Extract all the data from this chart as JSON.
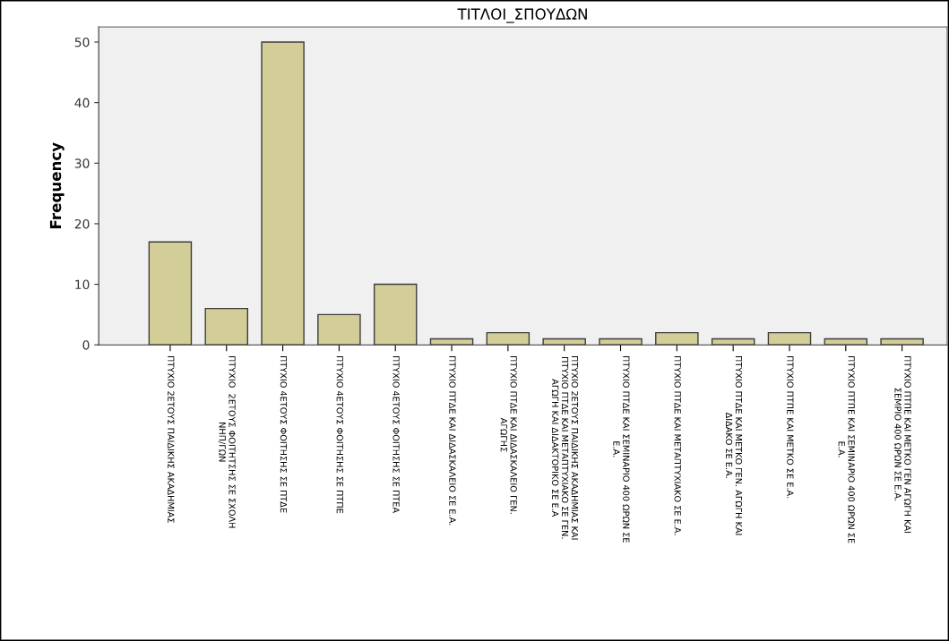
{
  "chart_data": {
    "type": "bar",
    "title": "ΤΙΤΛΟΙ_ΣΠΟΥΔΩΝ",
    "ylabel": "Frequency",
    "categories": [
      "ΠΤΥΧΙΟ 2ΕΤΟΥΣ ΠΑΙΔΙΚΗΣ ΑΚΑΔΗΜΙΑΣ",
      "ΠΤΥΧΙΟ  2ΕΤΟΥΣ ΦΟΙΤΗΤΣΗΣ ΣΕ ΣΧΟΛΗ\nΝΗΠ/ΓΩΝ",
      "ΠΤΥΧΙΟ 4ΕΤΟΥΣ ΦΟΙΤΗΣΗΣ ΣΕ ΠΤΔΕ",
      "ΠΤΥΧΙΟ 4ΕΤΟΥΣ ΦΟΙΤΗΣΗΣ ΣΕ ΠΤΠΕ",
      "ΠΤΥΧΙΟ 4ΕΤΟΥΣ ΦΟΙΤΗΣΗΣ ΣΕ ΠΤΕΑ",
      "ΠΤΥΧΙΟ ΠΤΔΕ ΚΑΙ ΔΙΔΑΣΚΑΛΕΙΟ ΣΕ Ε.Α.",
      "ΠΤΥΧΙΟ ΠΤΔΕ ΚΑΙ ΔΙΔΑΣΚΑΛΕΙΟ ΓΕΝ.\nΑΓΩΓΗΣ",
      "ΠΤΥΧΙΟ 2ΕΤΟΥΣ ΠΑΙΔΙΚΗΣ ΑΚΑΔΗΜΙΑΣ ΚΑΙ\nΠΤΥΧΙΟ ΠΤΔΕ ΚΑΙ ΜΕΤΑΠΤΥΧΙΑΚΟ ΣΕ ΓΕΝ.\nΑΓΩΓΗ ΚΑΙ ΔΙΔΑΚΤΟΡΙΚΟ ΣΕ Ε.Α",
      "ΠΤΥΧΙΟ ΠΤΔΕ ΚΑΙ ΣΕΜΙΝΑΡΙΟ 400 ΩΡΩΝ ΣΕ\nΕ.Α.",
      "ΠΤΥΧΙΟ ΠΤΔΕ ΚΑΙ ΜΕΤΑΠΤΥΧΙΑΚΟ ΣΕ Ε.Α.",
      "ΠΤΥΧΙΟ ΠΤΔΕ ΚΑΙ ΜΕΤΚΟ ΓΕΝ. ΑΓΩΓΗ ΚΑΙ\nΔΙΔΑΚΟ ΣΕ Ε.Α.",
      "ΠΤΥΧΙΟ ΠΤΠΕ ΚΑΙ ΜΕΤΚΟ ΣΕ Ε.Α.",
      "ΠΤΥΧΙΟ ΠΤΠΕ ΚΑΙ ΣΕΜΙΝΑΡΙΟ 400 ΩΡΩΝ ΣΕ\nΕ.Α.",
      "ΠΤΥΧΙΟ ΠΤΠΕ ΚΑΙ ΜΕΤΚΟ ΓΕΝ ΑΓΩΓΗ ΚΑΙ\nΣΕΜΡΙΟ 400 ΩΡΩΝ ΣΕ Ε.Α."
    ],
    "values": [
      17,
      6,
      50,
      5,
      10,
      1,
      2,
      1,
      1,
      2,
      1,
      2,
      1,
      1
    ],
    "color": "#d3ce97",
    "ylim": [
      0,
      52.5
    ],
    "yticks": [
      0,
      10,
      20,
      30,
      40,
      50
    ],
    "grid": false
  }
}
